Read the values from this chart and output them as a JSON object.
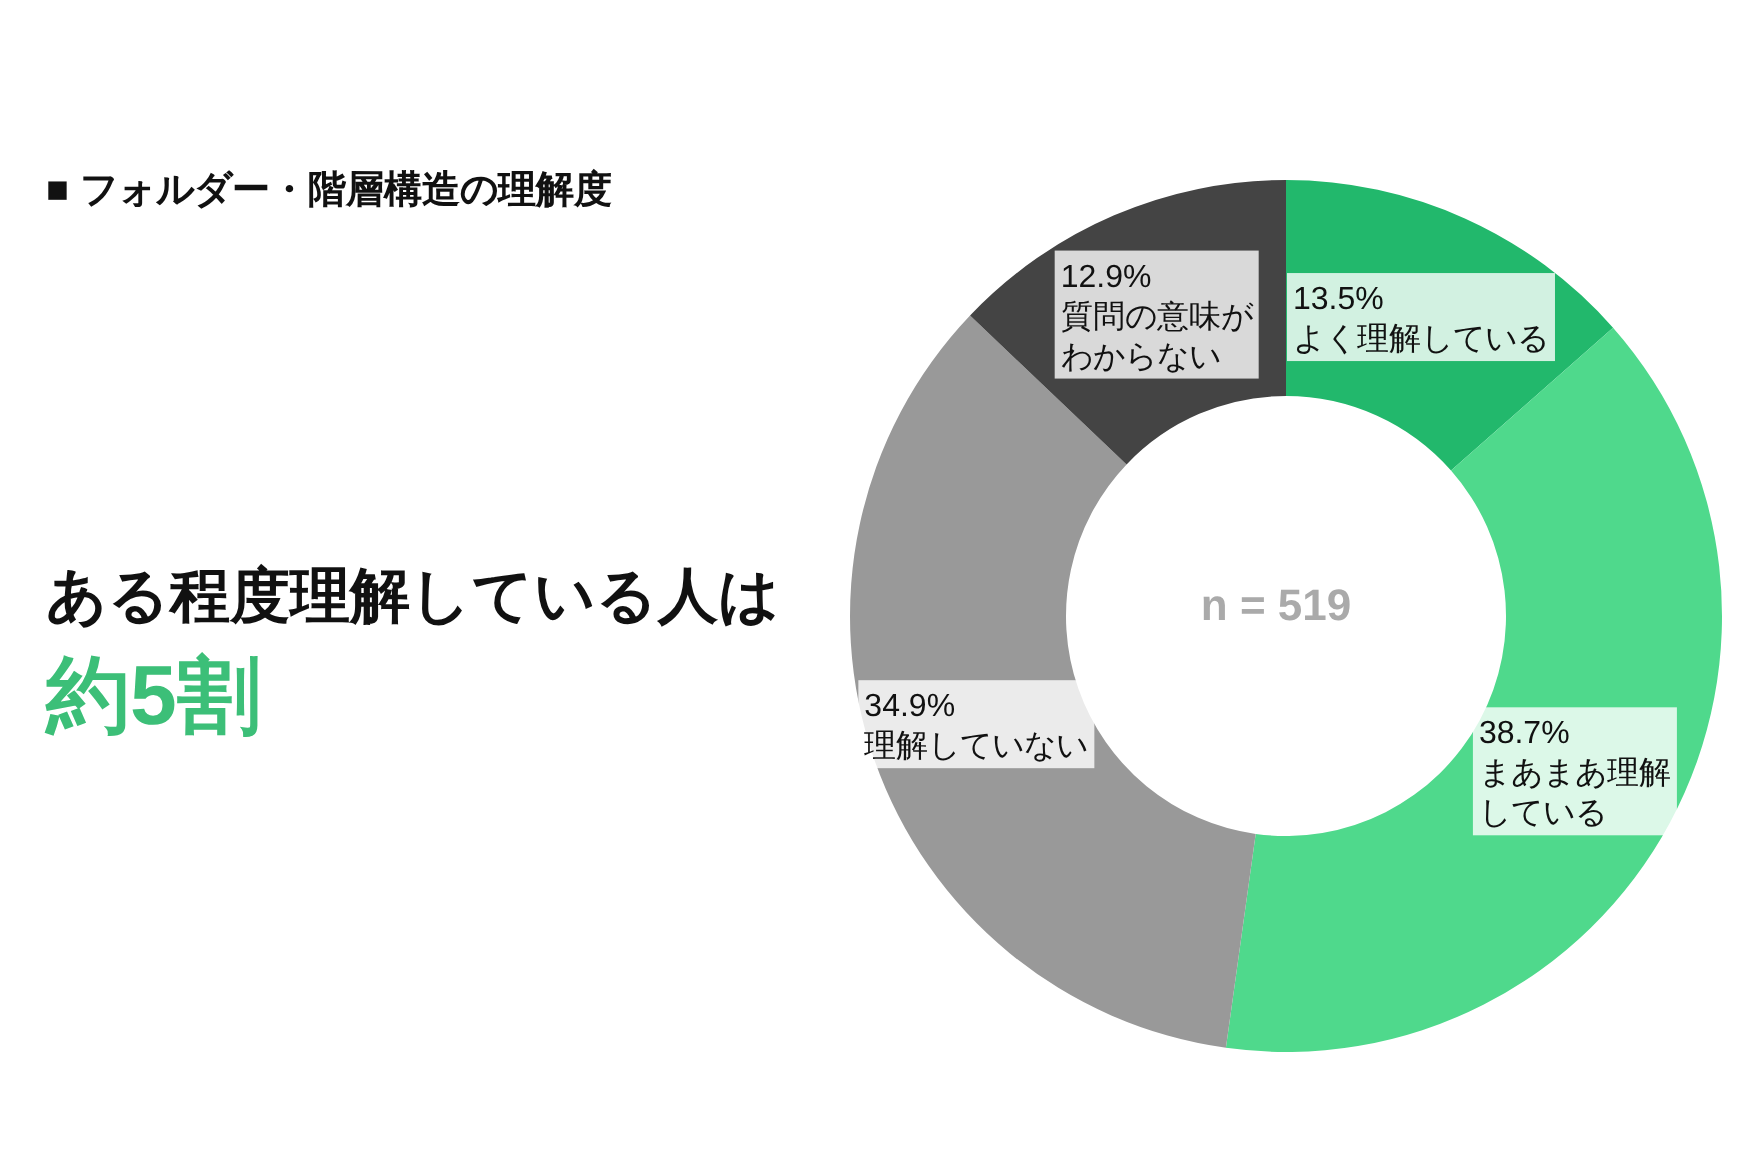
{
  "chart_data": {
    "type": "donut",
    "title": "■ フォルダー・階層構造の理解度",
    "categories": [
      "よく理解している",
      "まあまあ理解している",
      "理解していない",
      "質問の意味がわからない"
    ],
    "values": [
      13.5,
      38.7,
      34.9,
      12.9
    ],
    "value_labels": [
      "13.5%",
      "38.7%",
      "34.9%",
      "12.9%"
    ],
    "colors": [
      "#22b86c",
      "#4fd98c",
      "#999999",
      "#444444"
    ],
    "annotations": [
      "ある程度理解している人は",
      "約5割",
      "n = 519"
    ],
    "legend": false
  }
}
